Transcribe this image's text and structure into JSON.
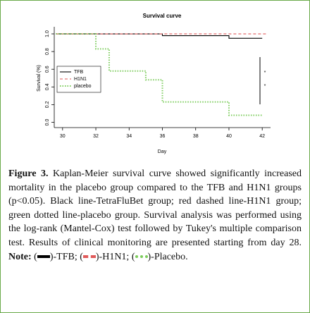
{
  "chart_data": {
    "type": "line",
    "title": "Survival curve",
    "x_label": "Day",
    "y_label": "Survival (%)",
    "xlim": [
      29.5,
      42.5
    ],
    "xticks": [
      30,
      32,
      34,
      36,
      38,
      40,
      42
    ],
    "ylim": [
      -0.06,
      1.08
    ],
    "yticks": [
      {
        "value": 0,
        "label": "0.0"
      },
      0.2,
      0.4,
      0.6,
      0.8,
      {
        "value": 1,
        "label": "1.0"
      }
    ],
    "legend": "upper left",
    "annotations": [
      "*",
      "*"
    ],
    "series": [
      {
        "name": "TFB",
        "color": "#000000",
        "style": "solid",
        "x": [
          29.6,
          36,
          36,
          40,
          40,
          42
        ],
        "values": [
          1,
          1,
          0.98,
          0.98,
          0.95,
          0.95
        ]
      },
      {
        "name": "H1N1",
        "color": "#e05a5a",
        "style": "dashed",
        "x": [
          29.6,
          42.3
        ],
        "values": [
          1,
          1
        ]
      },
      {
        "name": "placebo",
        "color": "#7ccc5c",
        "style": "dotted",
        "x": [
          29.6,
          32,
          32,
          32.8,
          32.8,
          35,
          35,
          36,
          36,
          40,
          40,
          42
        ],
        "values": [
          1,
          1,
          0.83,
          0.83,
          0.58,
          0.58,
          0.48,
          0.48,
          0.23,
          0.23,
          0.08,
          0.08
        ]
      }
    ]
  },
  "caption": {
    "label": "Figure 3.",
    "text": "Kaplan-Meier survival curve showed significantly increased mortality in the placebo group compared to the TFB and H1N1 groups (p<0.05). Black line-TetraFluBet group; red dashed line-H1N1 group; green dotted line-placebo group. Survival analysis was performed using the log-rank (Mantel-Cox) test followed by Tukey's multiple comparison test. Results of clinical monitoring are presented starting from day 28.",
    "note_label": "Note:",
    "note_items": [
      {
        "prefix": "(",
        "suffix": ")-TFB;"
      },
      {
        "prefix": "(",
        "suffix": ")-H1N1;"
      },
      {
        "prefix": "(",
        "suffix": ")-Placebo."
      }
    ]
  }
}
